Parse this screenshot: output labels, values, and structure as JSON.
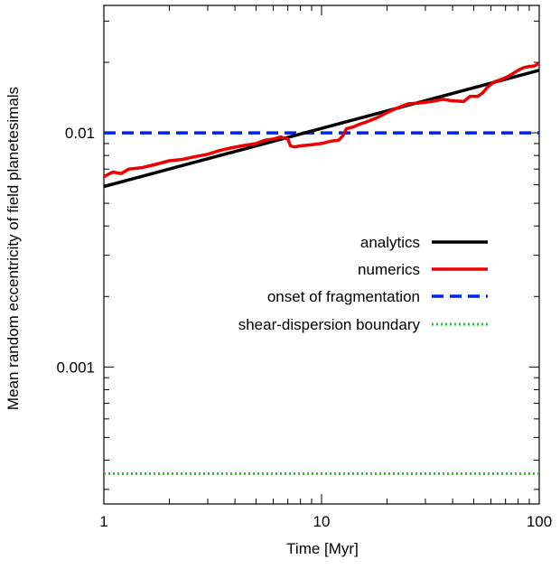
{
  "chart_data": {
    "type": "line",
    "xlabel": "Time [Myr]",
    "ylabel": "Mean random eccentricity of field planetesimals",
    "xscale": "log",
    "yscale": "log",
    "xlim": [
      1,
      100
    ],
    "ylim": [
      0.00026,
      0.035
    ],
    "x_ticks": [
      {
        "value": 1,
        "label": "1"
      },
      {
        "value": 10,
        "label": "10"
      },
      {
        "value": 100,
        "label": "100"
      }
    ],
    "y_ticks": [
      {
        "value": 0.001,
        "label": "0.001"
      },
      {
        "value": 0.01,
        "label": "0.01"
      }
    ],
    "grid": false,
    "legend_position": "right-middle",
    "series": [
      {
        "name": "analytics",
        "color": "#000000",
        "dash": "solid",
        "x": [
          1,
          100
        ],
        "y": [
          0.0059,
          0.0185
        ]
      },
      {
        "name": "numerics",
        "color": "#ee0000",
        "dash": "solid",
        "x": [
          1,
          1.1,
          1.2,
          1.3,
          1.5,
          1.7,
          2.0,
          2.3,
          2.6,
          3.0,
          3.4,
          3.8,
          4.3,
          5.0,
          5.5,
          6.0,
          6.5,
          7.0,
          7.2,
          7.5,
          8.0,
          9.0,
          10.0,
          11.0,
          12.0,
          12.5,
          13.0,
          14.0,
          15.0,
          16.0,
          18.0,
          20.0,
          22.0,
          25.0,
          28.0,
          32.0,
          36.0,
          40.0,
          45.0,
          48.0,
          52.0,
          55.0,
          58.0,
          62.0,
          66.0,
          70.0,
          75.0,
          80.0,
          85.0,
          90.0,
          95.0,
          100.0
        ],
        "y": [
          0.0065,
          0.0068,
          0.0067,
          0.007,
          0.0071,
          0.0073,
          0.0076,
          0.0077,
          0.0079,
          0.0081,
          0.0084,
          0.0086,
          0.0088,
          0.009,
          0.0093,
          0.0094,
          0.0096,
          0.0094,
          0.0088,
          0.0087,
          0.0088,
          0.0089,
          0.009,
          0.0092,
          0.0093,
          0.0097,
          0.0104,
          0.0106,
          0.0109,
          0.0111,
          0.0116,
          0.0122,
          0.0127,
          0.0133,
          0.0134,
          0.0136,
          0.0139,
          0.0137,
          0.0136,
          0.0143,
          0.0143,
          0.0148,
          0.0157,
          0.0165,
          0.0168,
          0.0172,
          0.0178,
          0.0185,
          0.019,
          0.0192,
          0.0193,
          0.0198
        ]
      },
      {
        "name": "onset of fragmentation",
        "color": "#0022ee",
        "dash": "dashed",
        "x": [
          1,
          100
        ],
        "y": [
          0.01,
          0.01
        ]
      },
      {
        "name": "shear-dispersion boundary",
        "color": "#22cc22",
        "dash": "dotted",
        "x": [
          1,
          100
        ],
        "y": [
          0.00035,
          0.00035
        ]
      }
    ]
  }
}
